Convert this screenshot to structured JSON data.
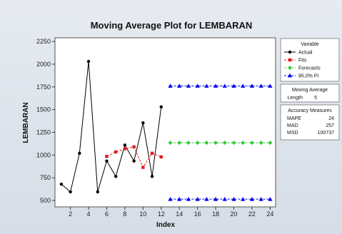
{
  "chart_data": {
    "type": "line",
    "title": "Moving Average Plot for LEMBARAN",
    "xlabel": "Index",
    "ylabel": "LEMBARAN",
    "xlim": [
      0.3,
      24.6
    ],
    "ylim": [
      430,
      2290
    ],
    "x_ticks": [
      2,
      4,
      6,
      8,
      10,
      12,
      14,
      16,
      18,
      20,
      22,
      24
    ],
    "y_ticks": [
      500,
      750,
      1000,
      1250,
      1500,
      1750,
      2000,
      2250
    ],
    "grid": false,
    "legend_title": "Variable",
    "legend_position": "right",
    "series": [
      {
        "name": "Actual",
        "color": "#000000",
        "marker": "circle",
        "x": [
          1,
          2,
          3,
          4,
          5,
          6,
          7,
          8,
          9,
          10,
          11,
          12
        ],
        "y": [
          680,
          595,
          1020,
          2030,
          595,
          935,
          765,
          1110,
          935,
          1355,
          765,
          1530
        ]
      },
      {
        "name": "Fits",
        "color": "#e41a1c",
        "marker": "square",
        "dashed": true,
        "x": [
          6,
          7,
          8,
          9,
          10,
          11,
          12
        ],
        "y": [
          985,
          1035,
          1070,
          1090,
          865,
          1020,
          980
        ]
      },
      {
        "name": "Forecasts",
        "color": "#33cc33",
        "marker": "diamond",
        "dashed": true,
        "x": [
          13,
          14,
          15,
          16,
          17,
          18,
          19,
          20,
          21,
          22,
          23,
          24
        ],
        "y": [
          1135,
          1135,
          1135,
          1135,
          1135,
          1135,
          1135,
          1135,
          1135,
          1135,
          1135,
          1135
        ]
      },
      {
        "name": "95,0% PI",
        "color": "#0000ee",
        "marker": "triangle",
        "dashed": true,
        "bands": [
          {
            "x": [
              13,
              14,
              15,
              16,
              17,
              18,
              19,
              20,
              21,
              22,
              23,
              24
            ],
            "y": [
              1760,
              1760,
              1760,
              1760,
              1760,
              1760,
              1760,
              1760,
              1760,
              1760,
              1760,
              1760
            ]
          },
          {
            "x": [
              13,
              14,
              15,
              16,
              17,
              18,
              19,
              20,
              21,
              22,
              23,
              24
            ],
            "y": [
              515,
              515,
              515,
              515,
              515,
              515,
              515,
              515,
              515,
              515,
              515,
              515
            ]
          }
        ]
      }
    ],
    "moving_average": {
      "heading": "Moving Average",
      "length_label": "Length",
      "length_value": "5"
    },
    "accuracy": {
      "heading": "Accuracy Measures",
      "rows": [
        {
          "label": "MAPE",
          "value": "24"
        },
        {
          "label": "MAD",
          "value": "257"
        },
        {
          "label": "MSD",
          "value": "100737"
        }
      ]
    }
  }
}
